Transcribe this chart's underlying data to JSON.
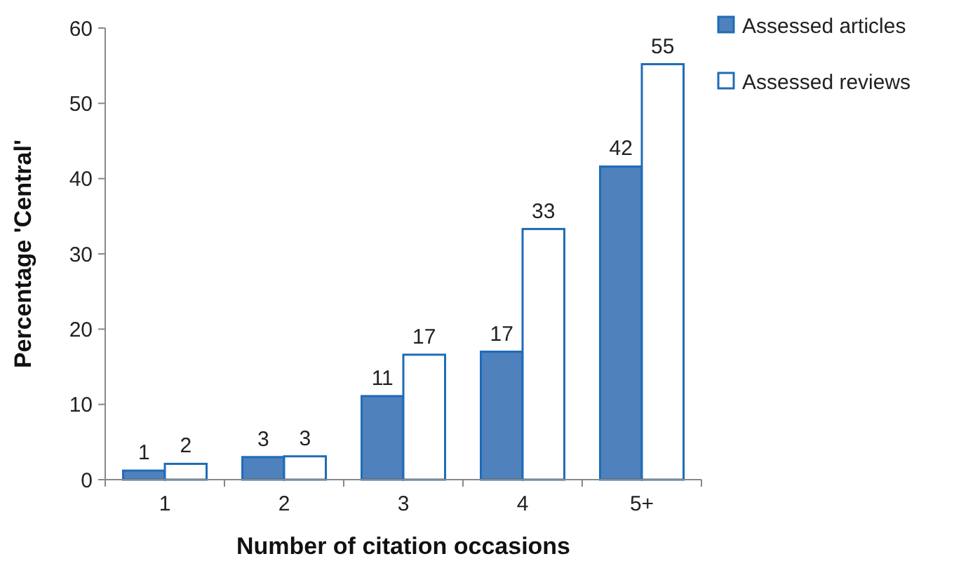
{
  "chart_data": {
    "type": "bar",
    "xlabel": "Number of citation occasions",
    "ylabel": "Percentage 'Central'",
    "categories": [
      "1",
      "2",
      "3",
      "4",
      "5+"
    ],
    "series": [
      {
        "name": "Assessed articles",
        "color": "#4f81bd",
        "values": [
          1.2,
          3.0,
          11.1,
          17.0,
          41.6
        ],
        "value_labels": [
          "1",
          "3",
          "11",
          "17",
          "42"
        ]
      },
      {
        "name": "Assessed reviews",
        "color": "#ffffff",
        "values": [
          2.1,
          3.1,
          16.6,
          33.3,
          55.2
        ],
        "value_labels": [
          "2",
          "3",
          "17",
          "33",
          "55"
        ]
      }
    ],
    "ylim": [
      0,
      60
    ],
    "yticks": [
      0,
      10,
      20,
      30,
      40,
      50,
      60
    ],
    "grid": false,
    "legend": "top right"
  }
}
